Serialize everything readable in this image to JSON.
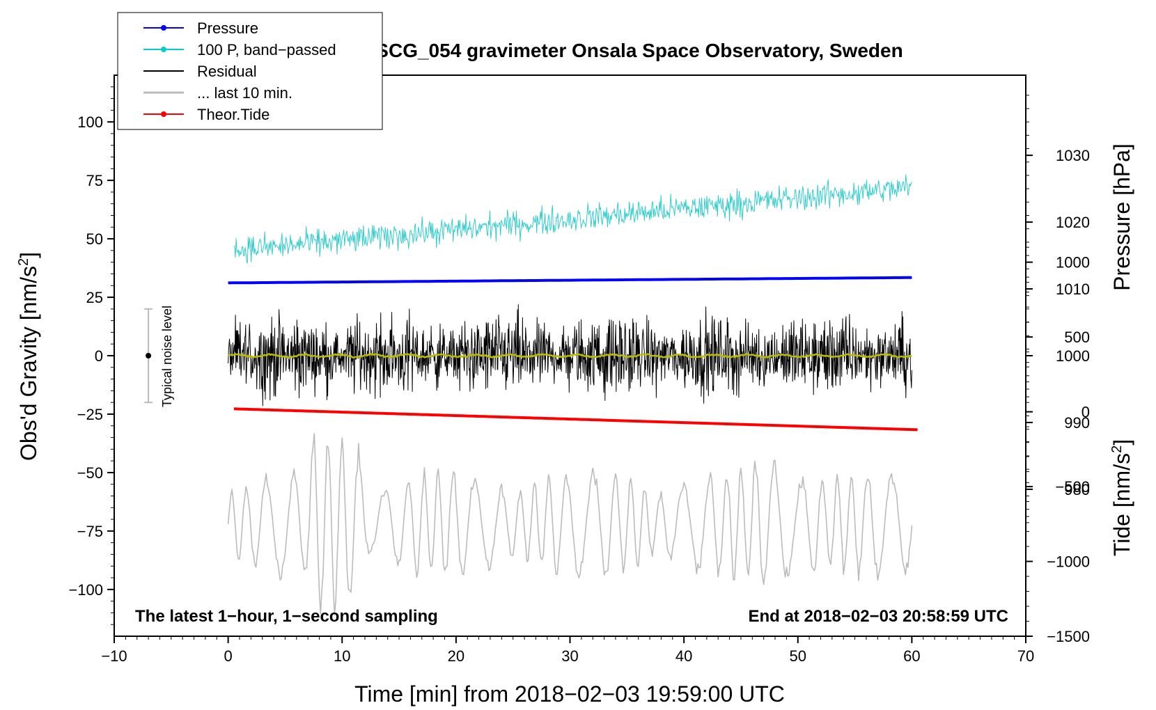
{
  "chart_data": {
    "type": "line",
    "title": "SCG_054 gravimeter Onsala Space Observatory, Sweden",
    "xlabel": "Time [min] from 2018−02−03 19:59:00 UTC",
    "ylabel_left_main": "Obs'd Gravity [nm/s",
    "ylabel_left_sup": "2",
    "ylabel_left_end": "]",
    "ylabel_right_pressure": "Pressure [hPa]",
    "ylabel_right_tide_main": "Tide [nm/s",
    "ylabel_right_tide_sup": "2",
    "ylabel_right_tide_end": "]",
    "xlim": [
      -10,
      70
    ],
    "ylim_left": [
      -120,
      120
    ],
    "ylim_pressure": [
      958,
      1042
    ],
    "ylim_tide": [
      -1500,
      2250
    ],
    "x_ticks": [
      {
        "v": -10,
        "label": "−10"
      },
      {
        "v": 0,
        "label": "0"
      },
      {
        "v": 10,
        "label": "10"
      },
      {
        "v": 20,
        "label": "20"
      },
      {
        "v": 30,
        "label": "30"
      },
      {
        "v": 40,
        "label": "40"
      },
      {
        "v": 50,
        "label": "50"
      },
      {
        "v": 60,
        "label": "60"
      },
      {
        "v": 70,
        "label": "70"
      }
    ],
    "y_ticks_left": [
      {
        "v": 100,
        "label": "100"
      },
      {
        "v": 75,
        "label": "75"
      },
      {
        "v": 50,
        "label": "50"
      },
      {
        "v": 25,
        "label": "25"
      },
      {
        "v": 0,
        "label": "0"
      },
      {
        "v": -25,
        "label": "−25"
      },
      {
        "v": -50,
        "label": "−50"
      },
      {
        "v": -75,
        "label": "−75"
      },
      {
        "v": -100,
        "label": "−100"
      }
    ],
    "y_ticks_pressure": [
      {
        "v": 1030,
        "label": "1030"
      },
      {
        "v": 1020,
        "label": "1020"
      },
      {
        "v": 1010,
        "label": "1010"
      },
      {
        "v": 1000,
        "label": "1000"
      },
      {
        "v": 990,
        "label": "990"
      },
      {
        "v": 980,
        "label": "980"
      }
    ],
    "y_ticks_tide": [
      {
        "v": 1000,
        "label": "1000"
      },
      {
        "v": 500,
        "label": "500"
      },
      {
        "v": 0,
        "label": "0"
      },
      {
        "v": -500,
        "label": "−500"
      },
      {
        "v": -1000,
        "label": "−1000"
      },
      {
        "v": -1500,
        "label": "−1500"
      }
    ],
    "legend": [
      {
        "label": "Pressure",
        "color": "#0000ff",
        "marker": true
      },
      {
        "label": "100 P, band−passed",
        "color": "#00cccc",
        "marker": true
      },
      {
        "label": "Residual",
        "color": "#000000",
        "marker": false
      },
      {
        "label": "... last 10 min.",
        "color": "#bbbbbb",
        "marker": false
      },
      {
        "label": "Theor.Tide",
        "color": "#ff0000",
        "marker": true
      }
    ],
    "legend_position": "top-left",
    "series": [
      {
        "name": "Pressure",
        "axis": "pressure",
        "color": "#0000ff",
        "x_range": [
          0,
          60
        ],
        "start": 1010.9,
        "end": 1011.7
      },
      {
        "name": "100 P, band−passed",
        "axis": "left",
        "color": "#33cccc",
        "x_range": [
          0.5,
          60
        ],
        "trend_start": 45,
        "trend_end": 72,
        "amplitude": 7
      },
      {
        "name": "Residual",
        "axis": "left",
        "color": "#000000",
        "x_range": [
          0,
          60
        ],
        "center": 0,
        "amplitude": 18
      },
      {
        "name": "Residual smoothed",
        "axis": "left",
        "color": "#bbbb00",
        "x_range": [
          0,
          60
        ],
        "center": 0,
        "amplitude": 1
      },
      {
        "name": "... last 10 min.",
        "axis": "left",
        "color": "#bbbbbb",
        "x_range": [
          0,
          60
        ],
        "center": -72,
        "amplitude": 20
      },
      {
        "name": "Theor.Tide",
        "axis": "tide",
        "color": "#ff0000",
        "x_range": [
          0.5,
          60.5
        ],
        "start": 20,
        "end": -120
      }
    ],
    "noise_level": {
      "label": "Typical noise level",
      "x": -7,
      "center": 0,
      "half_range": 20
    },
    "annotations": {
      "bottom_left": "The latest 1−hour, 1−second sampling",
      "bottom_right": "End at 2018−02−03 20:58:59 UTC"
    },
    "grid": false
  },
  "colors": {
    "pressure": "#0000ff",
    "bandpassed": "#33cccc",
    "residual": "#000000",
    "smoothed": "#bbbb00",
    "last10": "#bbbbbb",
    "tide": "#ff0000"
  }
}
